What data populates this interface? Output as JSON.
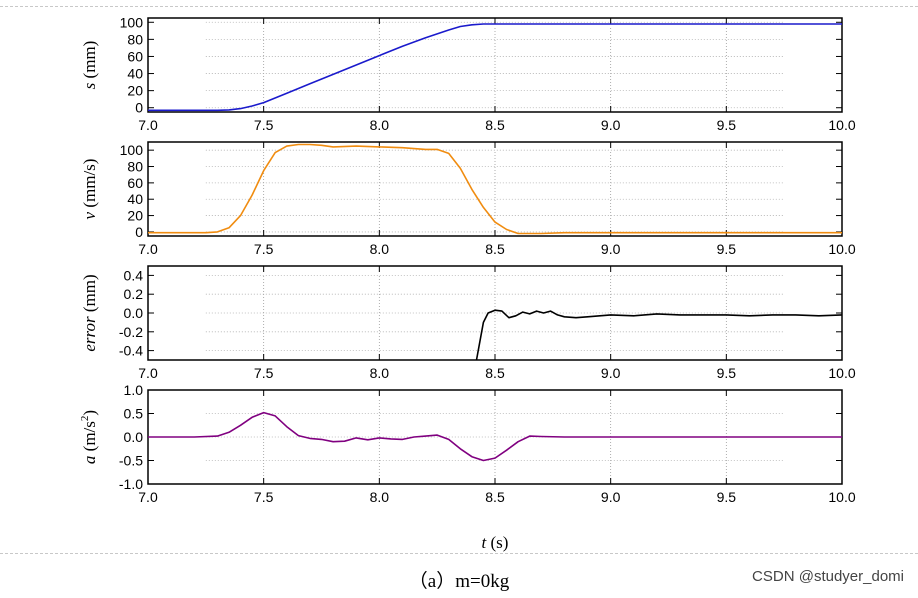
{
  "caption": "（a）m=0kg",
  "watermark": "CSDN @studyer_domi",
  "chart_data": [
    {
      "type": "line",
      "ylabel_italic": "s",
      "ylabel_unit": " (mm)",
      "xlim": [
        7.0,
        10.0
      ],
      "ylim": [
        -5,
        105
      ],
      "yticks": [
        0,
        20,
        40,
        60,
        80,
        100
      ],
      "xticks": [
        7.0,
        7.5,
        8.0,
        8.5,
        9.0,
        9.5,
        10.0
      ],
      "grid": true,
      "color": "#1a1acc",
      "series": [
        {
          "x": [
            7.0,
            7.2,
            7.3,
            7.35,
            7.4,
            7.45,
            7.5,
            7.6,
            7.7,
            7.8,
            7.9,
            8.0,
            8.1,
            8.2,
            8.3,
            8.35,
            8.4,
            8.45,
            8.5,
            9.0,
            9.5,
            10.0
          ],
          "y": [
            -3,
            -3,
            -3,
            -2.5,
            -1,
            2,
            6,
            17,
            28,
            39,
            50,
            61,
            72,
            82,
            91,
            95,
            97,
            98,
            98,
            98,
            98,
            98
          ]
        }
      ]
    },
    {
      "type": "line",
      "ylabel_italic": "v",
      "ylabel_unit": " (mm/s)",
      "xlim": [
        7.0,
        10.0
      ],
      "ylim": [
        -5,
        110
      ],
      "yticks": [
        0,
        20,
        40,
        60,
        80,
        100
      ],
      "xticks": [
        7.0,
        7.5,
        8.0,
        8.5,
        9.0,
        9.5,
        10.0
      ],
      "grid": true,
      "color": "#f08c10",
      "series": [
        {
          "x": [
            7.0,
            7.1,
            7.2,
            7.25,
            7.3,
            7.35,
            7.4,
            7.45,
            7.5,
            7.55,
            7.6,
            7.65,
            7.7,
            7.75,
            7.8,
            7.9,
            8.0,
            8.1,
            8.2,
            8.25,
            8.3,
            8.35,
            8.4,
            8.45,
            8.5,
            8.55,
            8.6,
            8.7,
            8.8,
            9.0,
            9.5,
            10.0
          ],
          "y": [
            -1,
            -1,
            -1,
            -1,
            0,
            5,
            20,
            45,
            75,
            97,
            105,
            107,
            107,
            106,
            104,
            105,
            104,
            103,
            101,
            101,
            96,
            78,
            52,
            30,
            12,
            3,
            -2,
            -2,
            -1,
            -1,
            -1,
            -1
          ]
        }
      ]
    },
    {
      "type": "line",
      "ylabel_italic": "error",
      "ylabel_unit": " (mm)",
      "xlim": [
        7.0,
        10.0
      ],
      "ylim": [
        -0.5,
        0.5
      ],
      "yticks": [
        -0.4,
        -0.2,
        0.0,
        0.2,
        0.4
      ],
      "xticks": [
        7.0,
        7.5,
        8.0,
        8.5,
        9.0,
        9.5,
        10.0
      ],
      "grid": true,
      "color": "#000000",
      "series": [
        {
          "x": [
            8.42,
            8.45,
            8.47,
            8.5,
            8.53,
            8.56,
            8.59,
            8.62,
            8.65,
            8.68,
            8.71,
            8.74,
            8.77,
            8.8,
            8.85,
            8.9,
            9.0,
            9.1,
            9.2,
            9.3,
            9.4,
            9.5,
            9.6,
            9.7,
            9.8,
            9.9,
            10.0
          ],
          "y": [
            -0.5,
            -0.1,
            0.0,
            0.03,
            0.02,
            -0.05,
            -0.03,
            0.01,
            -0.01,
            0.02,
            0.0,
            0.02,
            -0.02,
            -0.04,
            -0.05,
            -0.04,
            -0.02,
            -0.03,
            -0.01,
            -0.02,
            -0.02,
            -0.02,
            -0.03,
            -0.02,
            -0.02,
            -0.03,
            -0.02
          ]
        }
      ]
    },
    {
      "type": "line",
      "ylabel_italic": "a",
      "ylabel_unit": " (m/s",
      "ylabel_sup": "2",
      "ylabel_tail": ")",
      "xlabel_italic": "t",
      "xlabel_unit": " (s)",
      "xlim": [
        7.0,
        10.0
      ],
      "ylim": [
        -1.0,
        1.0
      ],
      "yticks": [
        -1.0,
        -0.5,
        0.0,
        0.5,
        1.0
      ],
      "xticks": [
        7.0,
        7.5,
        8.0,
        8.5,
        9.0,
        9.5,
        10.0
      ],
      "grid": true,
      "color": "#800080",
      "series": [
        {
          "x": [
            7.0,
            7.1,
            7.2,
            7.3,
            7.35,
            7.4,
            7.45,
            7.5,
            7.55,
            7.6,
            7.65,
            7.7,
            7.75,
            7.8,
            7.85,
            7.9,
            7.95,
            8.0,
            8.05,
            8.1,
            8.15,
            8.2,
            8.25,
            8.3,
            8.35,
            8.4,
            8.45,
            8.5,
            8.55,
            8.6,
            8.65,
            8.7,
            8.8,
            9.0,
            9.5,
            10.0
          ],
          "y": [
            0.0,
            0.0,
            0.0,
            0.02,
            0.1,
            0.25,
            0.42,
            0.52,
            0.45,
            0.22,
            0.03,
            -0.03,
            -0.05,
            -0.1,
            -0.09,
            -0.02,
            -0.06,
            -0.02,
            -0.04,
            -0.05,
            0.0,
            0.02,
            0.04,
            -0.05,
            -0.25,
            -0.42,
            -0.5,
            -0.45,
            -0.28,
            -0.1,
            0.02,
            0.01,
            0.0,
            0.0,
            0.0,
            0.0
          ]
        }
      ]
    }
  ]
}
